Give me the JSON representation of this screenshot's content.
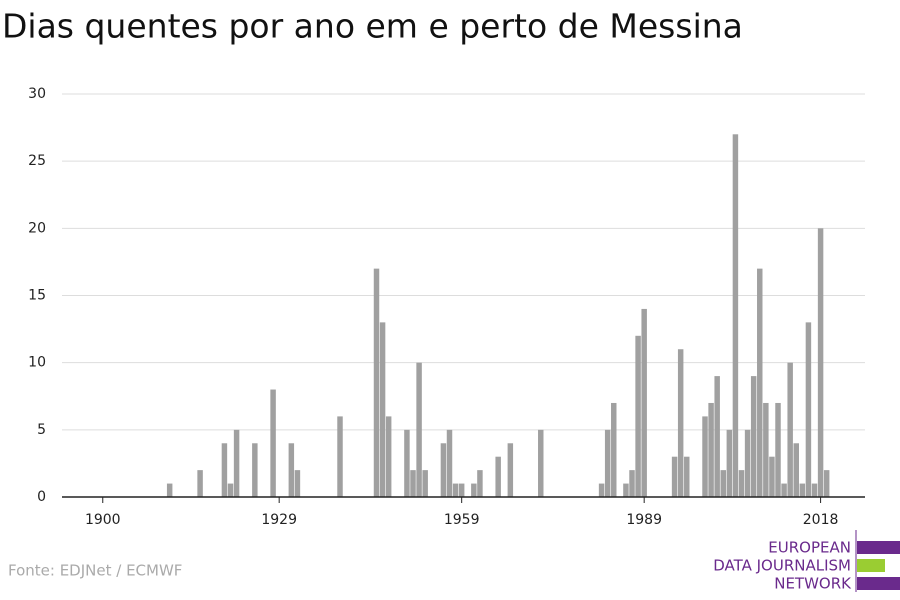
{
  "chart_data": {
    "type": "bar",
    "title": "Dias quentes por ano em e perto de Messina",
    "x": [
      1911,
      1916,
      1920,
      1921,
      1922,
      1925,
      1928,
      1931,
      1932,
      1939,
      1945,
      1946,
      1947,
      1950,
      1951,
      1952,
      1953,
      1956,
      1957,
      1958,
      1959,
      1961,
      1962,
      1965,
      1967,
      1972,
      1982,
      1983,
      1984,
      1986,
      1987,
      1988,
      1989,
      1994,
      1995,
      1996,
      1999,
      2000,
      2001,
      2002,
      2003,
      2004,
      2005,
      2006,
      2007,
      2008,
      2009,
      2010,
      2011,
      2012,
      2013,
      2014,
      2015,
      2016,
      2017,
      2018,
      2019
    ],
    "values": [
      1,
      2,
      4,
      1,
      5,
      4,
      8,
      4,
      2,
      6,
      17,
      13,
      6,
      5,
      2,
      10,
      2,
      4,
      5,
      1,
      1,
      1,
      2,
      3,
      4,
      5,
      1,
      5,
      7,
      1,
      2,
      12,
      14,
      3,
      11,
      3,
      6,
      7,
      9,
      2,
      5,
      27,
      2,
      5,
      9,
      17,
      7,
      3,
      7,
      1,
      10,
      4,
      1,
      13,
      1,
      20,
      2
    ],
    "color": "#a0a0a0",
    "xlim": [
      1893.3,
      2025.3
    ],
    "xticks": [
      1900,
      1929,
      1959,
      1989,
      2018
    ],
    "ylim": [
      0,
      30
    ],
    "yticks": [
      0,
      5,
      10,
      15,
      20,
      25,
      30
    ],
    "grid": true,
    "source": "Fonte: EDJNet / ECMWF",
    "logo": [
      "EUROPEAN",
      "DATA JOURNALISM",
      "NETWORK"
    ]
  }
}
